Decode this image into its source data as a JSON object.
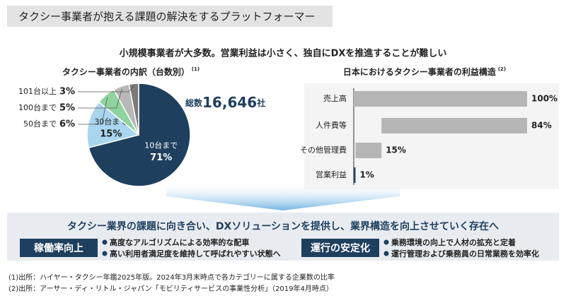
{
  "title": "タクシー事業者が抱える課題の解決をするプラットフォーマー",
  "subtitle": "小規模事業者が大多数。営業利益は小さく、独自にDXを推進することが難しい",
  "chart_data": [
    {
      "type": "pie",
      "title": "タクシー事業者の内訳（台数別）",
      "title_note": "(1)",
      "categories": [
        "10台まで",
        "30台まで",
        "50台まで",
        "100台まで",
        "101台以上"
      ],
      "values": [
        71,
        15,
        6,
        5,
        3
      ],
      "value_labels": [
        "71%",
        "15%",
        "6%",
        "5%",
        "3%"
      ],
      "colors": [
        "#1f3f5e",
        "#a9d5ee",
        "#8fd39f",
        "#b8b8b8",
        "#7b7b7b"
      ],
      "annotation": {
        "label": "総数",
        "value": "16,646",
        "unit": "社"
      }
    },
    {
      "type": "waterfall",
      "title": "日本におけるタクシー事業者の利益構造",
      "title_note": "(2)",
      "categories": [
        "売上高",
        "人件費等",
        "その他管理費",
        "営業利益"
      ],
      "values": [
        100,
        84,
        15,
        1
      ],
      "value_labels": [
        "100%",
        "84%",
        "15%",
        "1%"
      ],
      "measure": [
        "total",
        "decrease",
        "decrease",
        "total"
      ],
      "colors": [
        "#b5b5b5",
        "#b5b5b5",
        "#b5b5b5",
        "#1f3f5e"
      ],
      "xlim": [
        0,
        100
      ]
    }
  ],
  "solution": {
    "headline": "タクシー業界の課題に向き合い、DXソリューションを提供し、業界構造を向上させていく存在へ",
    "items": [
      {
        "badge": "稼働率向上",
        "points": [
          "高度なアルゴリズムによる効率的な配車",
          "高い利用者満足度を維持して呼ばれやすい状態へ"
        ]
      },
      {
        "badge": "運行の安定化",
        "points": [
          "乗務環境の向上で人材の拡充と定着",
          "運行管理および乗務員の日常業務を効率化"
        ]
      }
    ]
  },
  "footnotes": [
    "(1)出所：ハイヤー・タクシー年鑑2025年版。2024年3月末時点で各カテゴリーに属する企業数の比率",
    "(2)出所：アーサー・ディ・リトル・ジャパン「モビリティサービスの事業性分析」（2019年4月時点）"
  ]
}
